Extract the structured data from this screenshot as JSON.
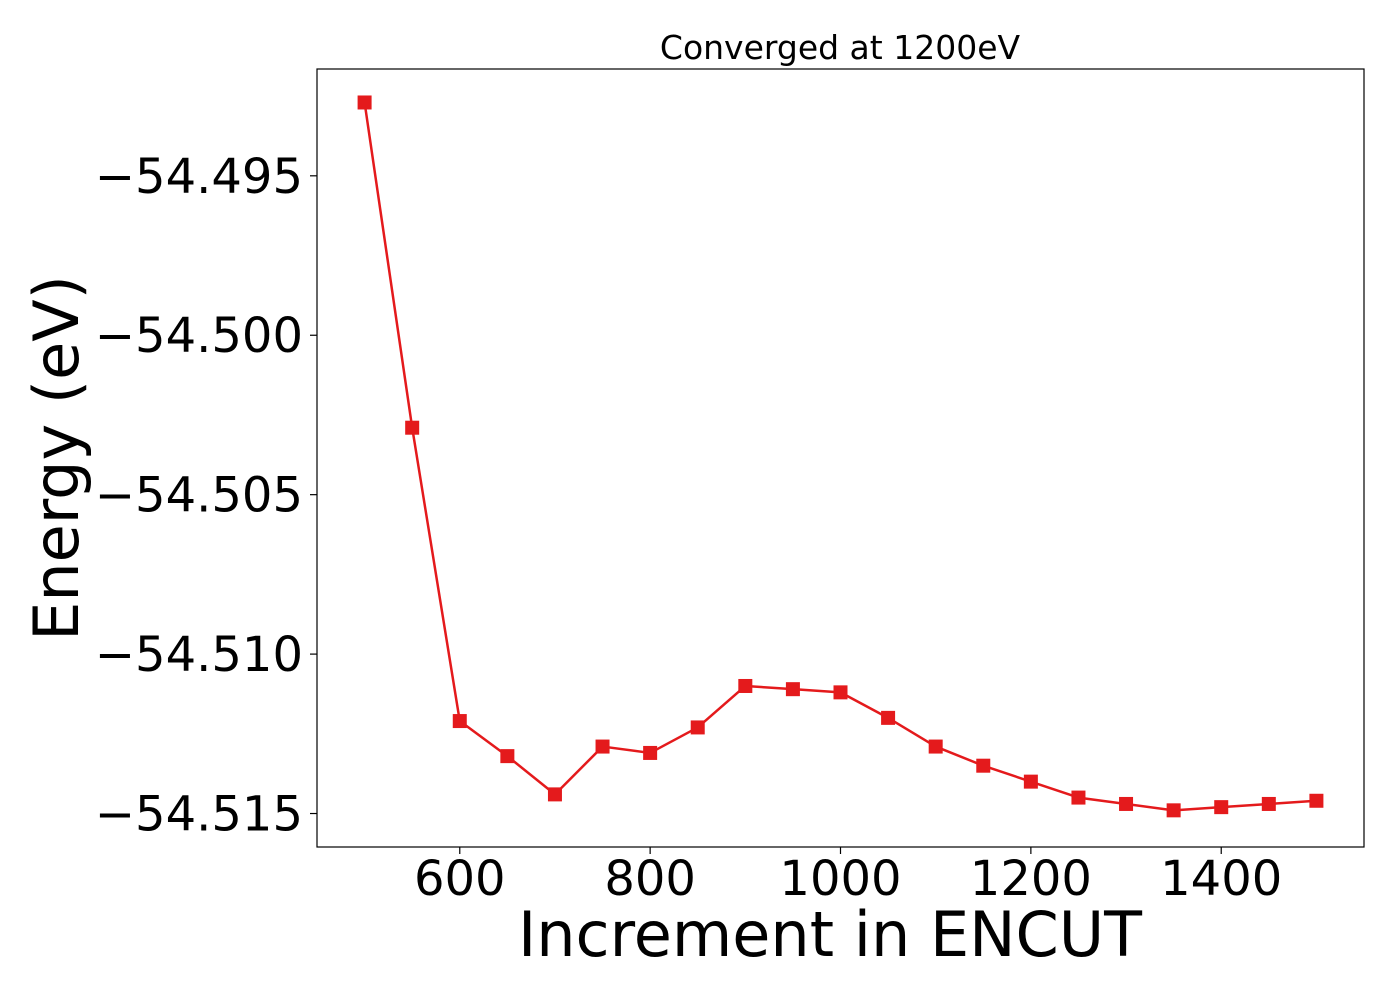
{
  "chart_data": {
    "type": "line",
    "title": "Converged at 1200eV",
    "xlabel": "Increment in ENCUT",
    "ylabel": "Energy (eV)",
    "xlim": [
      450,
      1550
    ],
    "ylim": [
      -54.51605,
      -54.49165
    ],
    "xticks": [
      600,
      800,
      1000,
      1200,
      1400
    ],
    "xtick_labels": [
      "600",
      "800",
      "1000",
      "1200",
      "1400"
    ],
    "yticks": [
      -54.495,
      -54.5,
      -54.505,
      -54.51,
      -54.515
    ],
    "ytick_labels": [
      "−54.495",
      "−54.500",
      "−54.505",
      "−54.510",
      "−54.515"
    ],
    "grid": false,
    "series": [
      {
        "color": "#e41a1c",
        "marker": "square",
        "x": [
          500,
          550,
          600,
          650,
          700,
          750,
          800,
          850,
          900,
          950,
          1000,
          1050,
          1100,
          1150,
          1200,
          1250,
          1300,
          1350,
          1400,
          1450,
          1500
        ],
        "y": [
          -54.4927,
          -54.5029,
          -54.5121,
          -54.5132,
          -54.5144,
          -54.5129,
          -54.5131,
          -54.5123,
          -54.511,
          -54.5111,
          -54.5112,
          -54.512,
          -54.5129,
          -54.5135,
          -54.514,
          -54.5145,
          -54.5147,
          -54.5149,
          -54.5148,
          -54.5147,
          -54.5146
        ]
      }
    ]
  }
}
